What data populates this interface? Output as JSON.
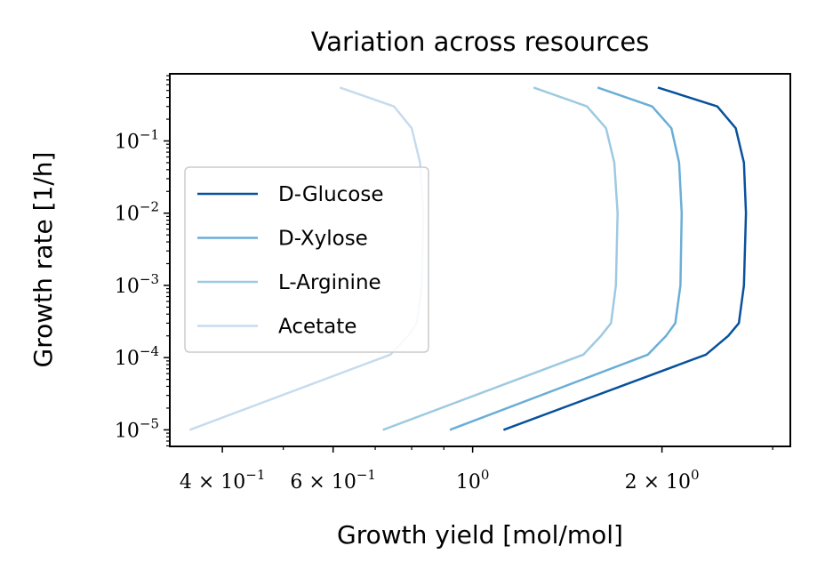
{
  "chart_data": {
    "type": "line",
    "title": "Variation across resources",
    "xlabel": "Growth yield [mol/mol]",
    "ylabel": "Growth rate [1/h]",
    "x_scale": "log",
    "y_scale": "log",
    "xlim": [
      0.33,
      3.2
    ],
    "ylim": [
      5.9e-06,
      0.85
    ],
    "grid": false,
    "legend_position": "center-left",
    "x_ticks": [
      {
        "value": 0.4,
        "base": "4 × 10",
        "exp": "−1"
      },
      {
        "value": 0.6,
        "base": "6 × 10",
        "exp": "−1"
      },
      {
        "value": 1.0,
        "base": "10",
        "exp": "0"
      },
      {
        "value": 2.0,
        "base": "2 × 10",
        "exp": "0"
      }
    ],
    "y_ticks": [
      {
        "value": 1e-05,
        "base": "10",
        "exp": "−5"
      },
      {
        "value": 0.0001,
        "base": "10",
        "exp": "−4"
      },
      {
        "value": 0.001,
        "base": "10",
        "exp": "−3"
      },
      {
        "value": 0.01,
        "base": "10",
        "exp": "−2"
      },
      {
        "value": 0.1,
        "base": "10",
        "exp": "−1"
      }
    ],
    "series": [
      {
        "name": "D-Glucose",
        "color": "#08519c",
        "points": [
          [
            1.12,
            1e-05
          ],
          [
            2.35,
            0.00011
          ],
          [
            2.55,
            0.0002
          ],
          [
            2.65,
            0.0003
          ],
          [
            2.7,
            0.001
          ],
          [
            2.72,
            0.01
          ],
          [
            2.7,
            0.05
          ],
          [
            2.62,
            0.15
          ],
          [
            2.45,
            0.3
          ],
          [
            1.97,
            0.55
          ]
        ]
      },
      {
        "name": "D-Xylose",
        "color": "#6baed6",
        "points": [
          [
            0.92,
            1e-05
          ],
          [
            1.9,
            0.00011
          ],
          [
            2.03,
            0.0002
          ],
          [
            2.1,
            0.0003
          ],
          [
            2.14,
            0.001
          ],
          [
            2.15,
            0.01
          ],
          [
            2.13,
            0.05
          ],
          [
            2.07,
            0.15
          ],
          [
            1.93,
            0.3
          ],
          [
            1.58,
            0.55
          ]
        ]
      },
      {
        "name": "L-Arginine",
        "color": "#9ecae1",
        "points": [
          [
            0.72,
            1e-05
          ],
          [
            1.5,
            0.00011
          ],
          [
            1.6,
            0.0002
          ],
          [
            1.66,
            0.0003
          ],
          [
            1.69,
            0.001
          ],
          [
            1.7,
            0.01
          ],
          [
            1.68,
            0.05
          ],
          [
            1.63,
            0.15
          ],
          [
            1.52,
            0.3
          ],
          [
            1.25,
            0.55
          ]
        ]
      },
      {
        "name": "Acetate",
        "color": "#c6dbef",
        "points": [
          [
            0.355,
            1e-05
          ],
          [
            0.74,
            0.00011
          ],
          [
            0.79,
            0.0002
          ],
          [
            0.815,
            0.0003
          ],
          [
            0.83,
            0.001
          ],
          [
            0.835,
            0.01
          ],
          [
            0.825,
            0.05
          ],
          [
            0.8,
            0.15
          ],
          [
            0.75,
            0.3
          ],
          [
            0.615,
            0.55
          ]
        ]
      }
    ]
  }
}
